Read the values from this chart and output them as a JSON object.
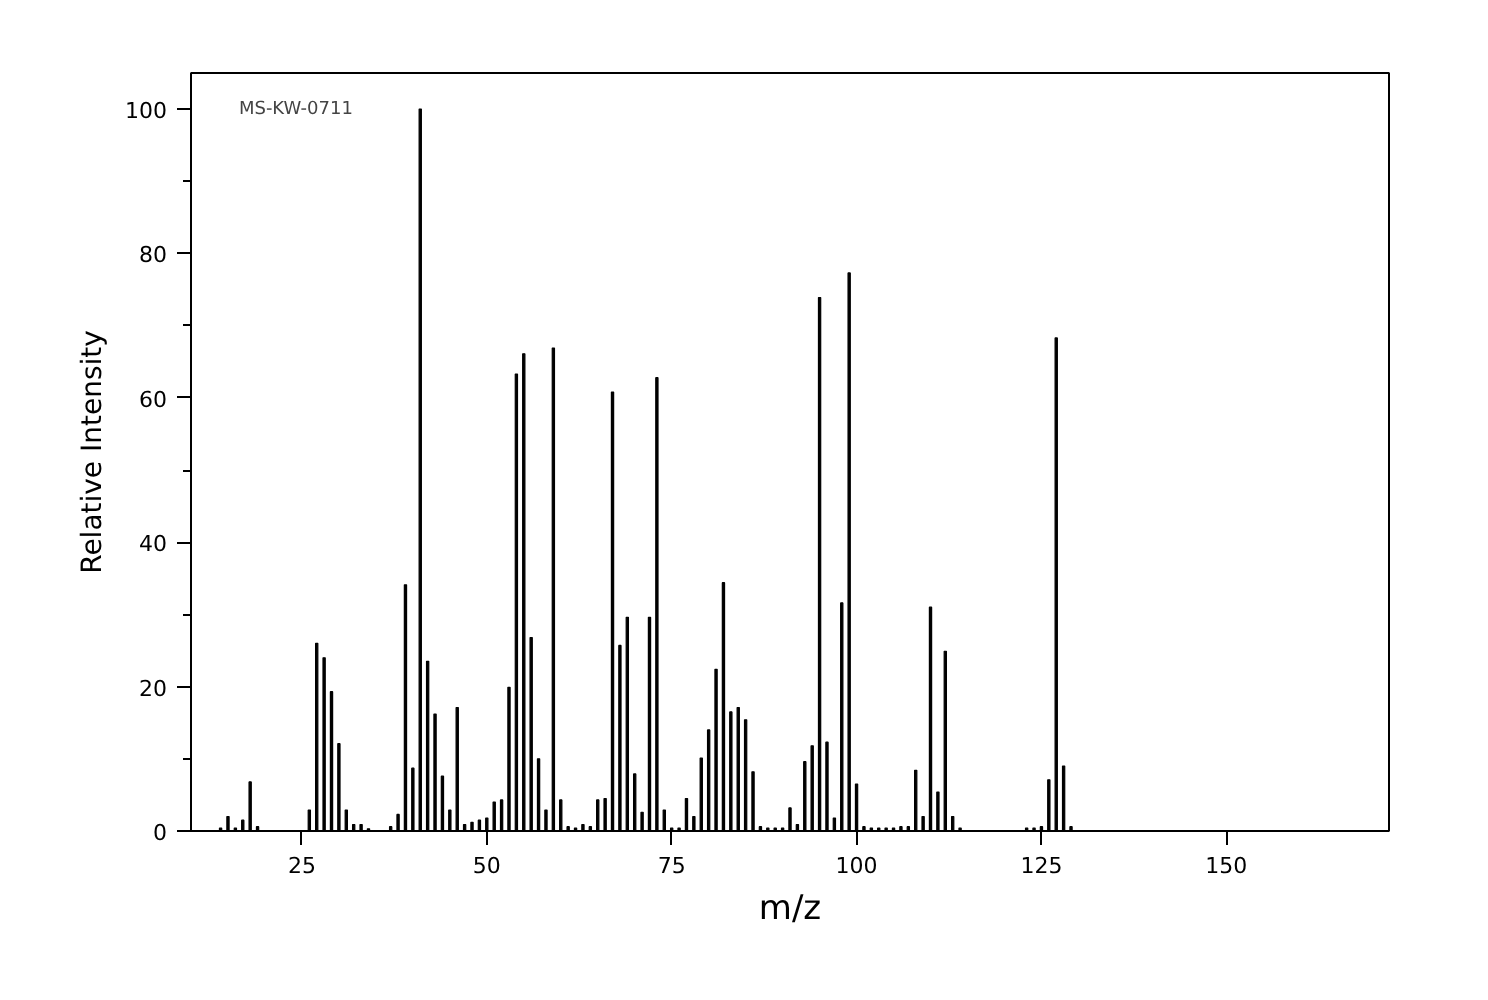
{
  "chart_data": {
    "type": "bar",
    "xlabel": "m/z",
    "ylabel": "Relative Intensity",
    "annotations": [
      "MS-KW-0711"
    ],
    "x": [
      14,
      15,
      16,
      17,
      18,
      19,
      26,
      27,
      28,
      29,
      30,
      31,
      32,
      33,
      34,
      37,
      38,
      39,
      40,
      41,
      42,
      43,
      44,
      45,
      46,
      47,
      48,
      49,
      50,
      51,
      52,
      53,
      54,
      55,
      56,
      57,
      58,
      59,
      60,
      61,
      62,
      63,
      64,
      65,
      66,
      67,
      68,
      69,
      70,
      71,
      72,
      73,
      74,
      75,
      76,
      77,
      78,
      79,
      80,
      81,
      82,
      83,
      84,
      85,
      86,
      87,
      88,
      89,
      90,
      91,
      92,
      93,
      94,
      95,
      96,
      97,
      98,
      99,
      100,
      101,
      102,
      103,
      104,
      105,
      106,
      107,
      108,
      109,
      110,
      111,
      112,
      113,
      114,
      123,
      124,
      125,
      126,
      127,
      128,
      129
    ],
    "values": [
      0.4,
      2.0,
      0.4,
      1.5,
      6.8,
      0.6,
      2.9,
      26.0,
      24.0,
      19.3,
      12.1,
      2.9,
      0.9,
      0.9,
      0.3,
      0.6,
      2.3,
      34.1,
      8.7,
      100,
      23.5,
      16.2,
      7.6,
      2.9,
      17.1,
      0.9,
      1.2,
      1.5,
      1.8,
      4.0,
      4.3,
      19.9,
      63.3,
      66.1,
      26.8,
      10.0,
      2.9,
      66.9,
      4.3,
      0.6,
      0.4,
      0.9,
      0.6,
      4.3,
      4.5,
      60.8,
      25.7,
      29.6,
      7.9,
      2.6,
      29.6,
      62.8,
      2.9,
      0.4,
      0.4,
      4.5,
      2.0,
      10.1,
      14.0,
      22.4,
      34.4,
      16.5,
      17.1,
      15.4,
      8.2,
      0.6,
      0.4,
      0.4,
      0.4,
      3.2,
      0.9,
      9.6,
      11.8,
      73.9,
      12.3,
      1.8,
      31.6,
      77.3,
      6.5,
      0.6,
      0.4,
      0.4,
      0.4,
      0.4,
      0.6,
      0.6,
      8.4,
      2.0,
      31.0,
      5.4,
      24.9,
      2.0,
      0.4,
      0.4,
      0.4,
      0.6,
      7.1,
      68.3,
      9.0,
      0.6
    ],
    "color": "#000000",
    "xlim": [
      10,
      172
    ],
    "ylim": [
      0,
      105
    ],
    "xticks": [
      25,
      50,
      75,
      100,
      125,
      150
    ],
    "yticks": [
      0,
      {
        "value": 10,
        "label": null
      },
      20,
      {
        "value": 30,
        "label": null
      },
      40,
      {
        "value": 50,
        "label": null
      },
      60,
      {
        "value": 70,
        "label": null
      },
      80,
      {
        "value": 90,
        "label": null
      },
      100
    ],
    "grid": false
  }
}
